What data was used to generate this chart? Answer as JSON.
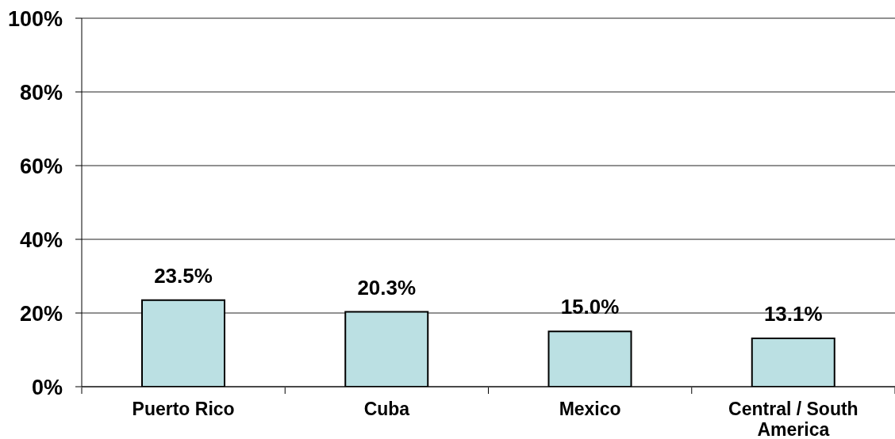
{
  "chart_data": {
    "type": "bar",
    "categories": [
      "Puerto Rico",
      "Cuba",
      "Mexico",
      "Central / South America"
    ],
    "values": [
      23.5,
      20.3,
      15.0,
      13.1
    ],
    "color": "#bbe0e3",
    "ylim": [
      0,
      100
    ],
    "yticks": [
      {
        "value": 0,
        "label": "0%"
      },
      {
        "value": 20,
        "label": "20%"
      },
      {
        "value": 40,
        "label": "40%"
      },
      {
        "value": 60,
        "label": "60%"
      },
      {
        "value": 80,
        "label": "80%"
      },
      {
        "value": 100,
        "label": "100%"
      }
    ],
    "grid": "y",
    "value_labels": [
      "23.5%",
      "20.3%",
      "15.0%",
      "13.1%"
    ]
  }
}
